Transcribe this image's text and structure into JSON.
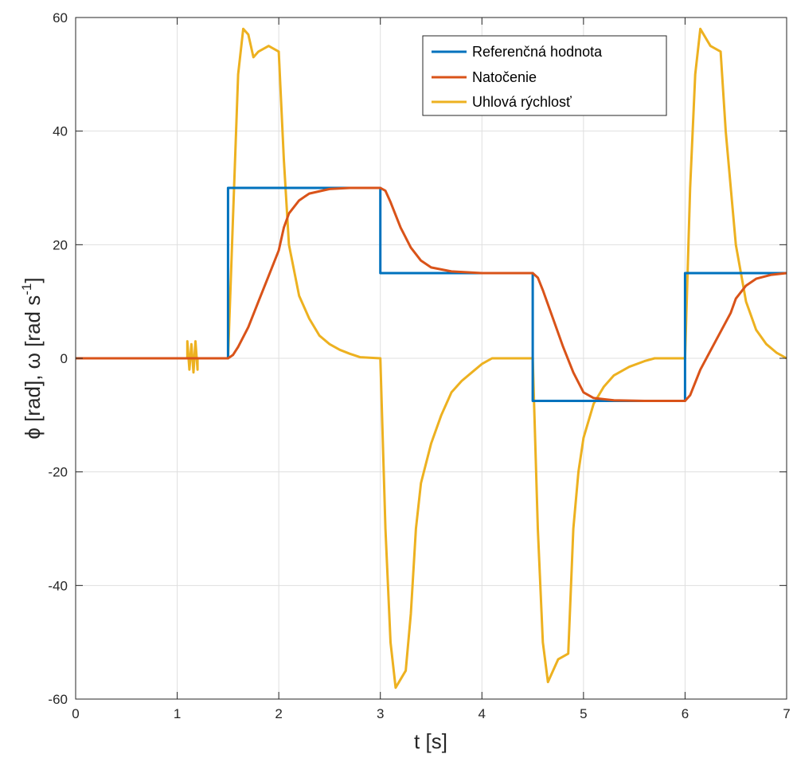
{
  "chart_data": {
    "type": "line",
    "xlabel": "t [s]",
    "ylabel": {
      "main": "ϕ [rad], ω [rad s",
      "sup": "-1",
      "close": "]"
    },
    "xlim": [
      0,
      7
    ],
    "ylim": [
      -60,
      60
    ],
    "x_ticks": [
      0,
      1,
      2,
      3,
      4,
      5,
      6,
      7
    ],
    "y_ticks": [
      -60,
      -40,
      -20,
      0,
      20,
      40,
      60
    ],
    "grid": true,
    "legend_position": "top-right",
    "series": [
      {
        "name": "Referenčná hodnota",
        "color": "#0072BD",
        "points": [
          [
            0,
            0
          ],
          [
            1.5,
            0
          ],
          [
            1.5,
            30
          ],
          [
            3,
            30
          ],
          [
            3,
            15
          ],
          [
            4.5,
            15
          ],
          [
            4.5,
            -7.5
          ],
          [
            6,
            -7.5
          ],
          [
            6,
            15
          ],
          [
            7,
            15
          ]
        ]
      },
      {
        "name": "Natočenie",
        "color": "#D95319",
        "points": [
          [
            0,
            0
          ],
          [
            1.5,
            0
          ],
          [
            1.55,
            0.6
          ],
          [
            1.6,
            2
          ],
          [
            1.7,
            5.5
          ],
          [
            1.8,
            10
          ],
          [
            1.9,
            14.5
          ],
          [
            2.0,
            19
          ],
          [
            2.05,
            23
          ],
          [
            2.1,
            25.5
          ],
          [
            2.2,
            27.8
          ],
          [
            2.3,
            29
          ],
          [
            2.5,
            29.8
          ],
          [
            2.7,
            30
          ],
          [
            3.0,
            30
          ],
          [
            3.05,
            29.5
          ],
          [
            3.1,
            27.5
          ],
          [
            3.2,
            23
          ],
          [
            3.3,
            19.5
          ],
          [
            3.4,
            17.2
          ],
          [
            3.5,
            16
          ],
          [
            3.7,
            15.3
          ],
          [
            4.0,
            15
          ],
          [
            4.5,
            15
          ],
          [
            4.55,
            14.2
          ],
          [
            4.6,
            12
          ],
          [
            4.7,
            7
          ],
          [
            4.8,
            2
          ],
          [
            4.9,
            -2.5
          ],
          [
            5.0,
            -6
          ],
          [
            5.1,
            -7
          ],
          [
            5.3,
            -7.4
          ],
          [
            5.6,
            -7.5
          ],
          [
            6.0,
            -7.5
          ],
          [
            6.05,
            -6.5
          ],
          [
            6.15,
            -2
          ],
          [
            6.3,
            3
          ],
          [
            6.45,
            8
          ],
          [
            6.5,
            10.5
          ],
          [
            6.6,
            12.8
          ],
          [
            6.7,
            14
          ],
          [
            6.85,
            14.7
          ],
          [
            7,
            15
          ]
        ]
      },
      {
        "name": "Uhlová rýchlosť",
        "color": "#EDB120",
        "points": [
          [
            0,
            0
          ],
          [
            1.1,
            0
          ],
          [
            1.1,
            3
          ],
          [
            1.12,
            -2
          ],
          [
            1.14,
            2.5
          ],
          [
            1.16,
            -2.5
          ],
          [
            1.18,
            3
          ],
          [
            1.2,
            -2
          ],
          [
            1.2,
            0
          ],
          [
            1.5,
            0
          ],
          [
            1.55,
            25
          ],
          [
            1.6,
            50
          ],
          [
            1.65,
            58
          ],
          [
            1.7,
            57
          ],
          [
            1.75,
            53
          ],
          [
            1.8,
            54
          ],
          [
            1.9,
            55
          ],
          [
            2.0,
            54
          ],
          [
            2.05,
            35
          ],
          [
            2.1,
            20
          ],
          [
            2.2,
            11
          ],
          [
            2.3,
            7
          ],
          [
            2.4,
            4
          ],
          [
            2.5,
            2.5
          ],
          [
            2.6,
            1.5
          ],
          [
            2.7,
            0.8
          ],
          [
            2.8,
            0.2
          ],
          [
            3.0,
            0
          ],
          [
            3.05,
            -30
          ],
          [
            3.1,
            -50
          ],
          [
            3.15,
            -58
          ],
          [
            3.25,
            -55
          ],
          [
            3.3,
            -45
          ],
          [
            3.35,
            -30
          ],
          [
            3.4,
            -22
          ],
          [
            3.5,
            -15
          ],
          [
            3.6,
            -10
          ],
          [
            3.7,
            -6
          ],
          [
            3.8,
            -4
          ],
          [
            3.9,
            -2.5
          ],
          [
            4.0,
            -1
          ],
          [
            4.1,
            0
          ],
          [
            4.5,
            0
          ],
          [
            4.55,
            -30
          ],
          [
            4.6,
            -50
          ],
          [
            4.65,
            -57
          ],
          [
            4.75,
            -53
          ],
          [
            4.85,
            -52
          ],
          [
            4.9,
            -30
          ],
          [
            4.95,
            -20
          ],
          [
            5.0,
            -14
          ],
          [
            5.1,
            -8
          ],
          [
            5.2,
            -5
          ],
          [
            5.3,
            -3
          ],
          [
            5.45,
            -1.5
          ],
          [
            5.6,
            -0.5
          ],
          [
            5.7,
            0
          ],
          [
            6.0,
            0
          ],
          [
            6.05,
            30
          ],
          [
            6.1,
            50
          ],
          [
            6.15,
            58
          ],
          [
            6.25,
            55
          ],
          [
            6.35,
            54
          ],
          [
            6.4,
            40
          ],
          [
            6.5,
            20
          ],
          [
            6.6,
            10
          ],
          [
            6.7,
            5
          ],
          [
            6.8,
            2.5
          ],
          [
            6.9,
            1
          ],
          [
            7.0,
            0
          ]
        ]
      }
    ]
  }
}
